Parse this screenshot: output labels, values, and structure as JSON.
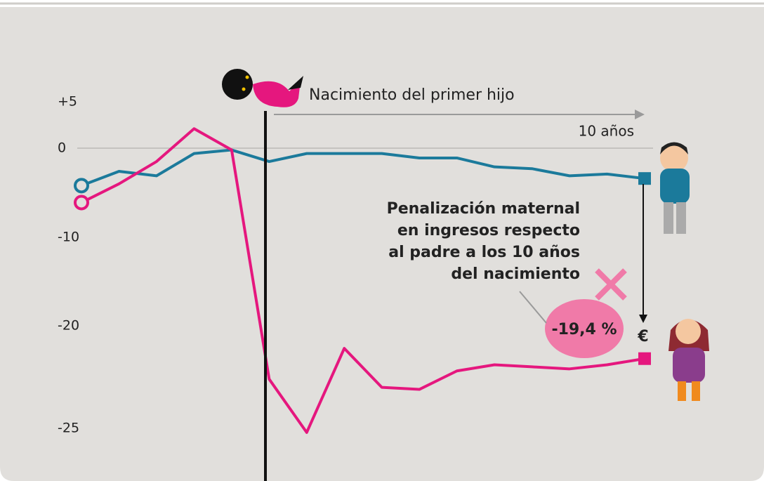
{
  "chart_data": {
    "type": "line",
    "annotation": "Nacimiento del primer hijo",
    "span_label": "10 años",
    "note_lines": [
      "Penalización maternal",
      "en ingresos respecto",
      "al padre a los 10 años",
      "del nacimiento"
    ],
    "gap_label": "-19,4 %",
    "currency_label": "€",
    "categories": [
      null,
      null,
      null,
      null,
      null,
      null,
      null,
      null,
      null,
      null,
      null,
      null,
      null,
      null,
      null,
      null
    ],
    "series": [
      {
        "color": "#1b7a9b",
        "values": [
          -4.2,
          -2.6,
          -3.1,
          -0.6,
          -0.2,
          -1.5,
          -0.6,
          -0.6,
          -0.6,
          -1.1,
          -1.1,
          -2.1,
          -2.3,
          -3.1,
          -2.9,
          -3.4
        ]
      },
      {
        "color": "#e5177e",
        "values": [
          -6.1,
          -4.0,
          -1.5,
          2.1,
          -0.2,
          -22.6,
          -25.2,
          -21.1,
          -23.0,
          -23.1,
          -22.2,
          -21.9,
          -22.0,
          -22.1,
          -21.9,
          -21.6
        ]
      }
    ],
    "ylim": [
      -25.5,
      5
    ],
    "yticks": [
      {
        "value": 5,
        "label": "+5"
      },
      0,
      -10,
      -20,
      -25
    ]
  }
}
